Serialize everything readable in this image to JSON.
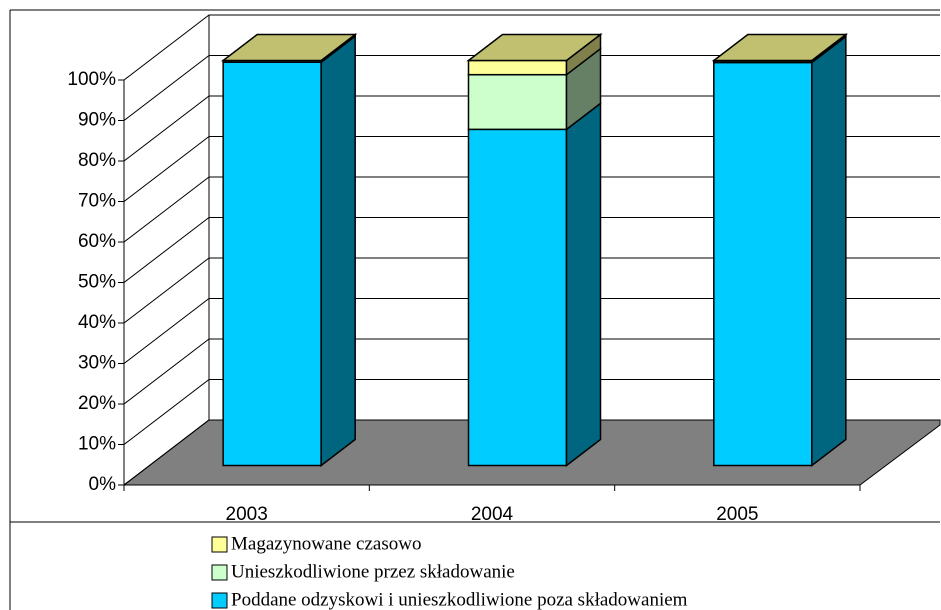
{
  "chart_data": {
    "type": "bar3d_stacked",
    "categories": [
      "2003",
      "2004",
      "2005"
    ],
    "series": [
      {
        "name": "Poddane odzyskowi i unieszkodliwione poza składowaniem",
        "color": "#00ccff",
        "side_color": "#006680",
        "values": [
          99.6,
          83,
          99.5
        ]
      },
      {
        "name": "Unieszkodliwione przez składowanie",
        "color": "#ccffcc",
        "side_color": "#668066",
        "values": [
          0,
          13.5,
          0.1
        ]
      },
      {
        "name": "Magazynowane czasowo",
        "color": "#ffff99",
        "side_color": "#80804d",
        "values": [
          0.4,
          3.5,
          0.4
        ]
      }
    ],
    "ylim": [
      0,
      100
    ],
    "yticks": [
      {
        "value": 0,
        "label": "0%"
      },
      {
        "value": 10,
        "label": "10%"
      },
      {
        "value": 20,
        "label": "20%"
      },
      {
        "value": 30,
        "label": "30%"
      },
      {
        "value": 40,
        "label": "40%"
      },
      {
        "value": 50,
        "label": "50%"
      },
      {
        "value": 60,
        "label": "60%"
      },
      {
        "value": 70,
        "label": "70%"
      },
      {
        "value": 80,
        "label": "80%"
      },
      {
        "value": 90,
        "label": "90%"
      },
      {
        "value": 100,
        "label": "100%"
      }
    ],
    "grid": true,
    "legend": "bottom"
  }
}
